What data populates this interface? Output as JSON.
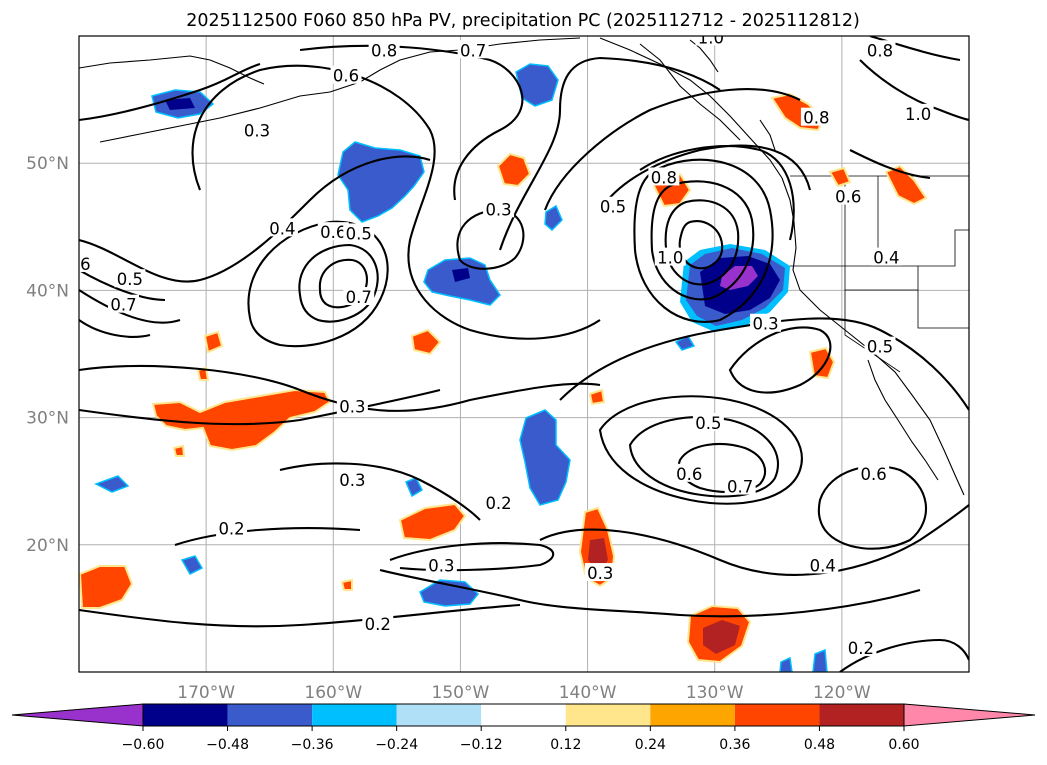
{
  "chart_data": {
    "type": "contour-map",
    "title": "2025112500 F060 850 hPa PV, precipitation PC (2025112712 - 2025112812)",
    "x_axis": {
      "unit": "longitude",
      "range": [
        -180,
        -110
      ],
      "ticks": [
        {
          "value": -170,
          "label": "170°W"
        },
        {
          "value": -160,
          "label": "160°W"
        },
        {
          "value": -150,
          "label": "150°W"
        },
        {
          "value": -140,
          "label": "140°W"
        },
        {
          "value": -130,
          "label": "130°W"
        },
        {
          "value": -120,
          "label": "120°W"
        }
      ]
    },
    "y_axis": {
      "unit": "latitude",
      "range": [
        10,
        60
      ],
      "ticks": [
        {
          "value": 20,
          "label": "20°N"
        },
        {
          "value": 30,
          "label": "30°N"
        },
        {
          "value": 40,
          "label": "40°N"
        },
        {
          "value": 50,
          "label": "50°N"
        }
      ]
    },
    "grid": true,
    "contour_labels": [
      {
        "lon": -166,
        "lat": 52.5,
        "label": "0.3"
      },
      {
        "lon": -156,
        "lat": 58.8,
        "label": "0.8"
      },
      {
        "lon": -159,
        "lat": 56.8,
        "label": "0.6"
      },
      {
        "lon": -149,
        "lat": 58.8,
        "label": "0.7"
      },
      {
        "lon": -164,
        "lat": 44.8,
        "label": "0.4"
      },
      {
        "lon": -160,
        "lat": 44.5,
        "label": "0.6"
      },
      {
        "lon": -158,
        "lat": 44.4,
        "label": "0.5"
      },
      {
        "lon": -158,
        "lat": 39.4,
        "label": "0.7"
      },
      {
        "lon": -147,
        "lat": 46.3,
        "label": "0.3"
      },
      {
        "lon": -138,
        "lat": 46.5,
        "label": "0.5"
      },
      {
        "lon": -133.5,
        "lat": 42.5,
        "label": "1.0"
      },
      {
        "lon": -134,
        "lat": 48.8,
        "label": "0.8"
      },
      {
        "lon": -130.3,
        "lat": 59.8,
        "label": "1.0"
      },
      {
        "lon": -117,
        "lat": 58.8,
        "label": "0.8"
      },
      {
        "lon": -114,
        "lat": 53.8,
        "label": "1.0"
      },
      {
        "lon": -119.5,
        "lat": 47.3,
        "label": "0.6"
      },
      {
        "lon": -122,
        "lat": 53.5,
        "label": "0.8"
      },
      {
        "lon": -116.5,
        "lat": 42.5,
        "label": "0.4"
      },
      {
        "lon": -126,
        "lat": 37.3,
        "label": "0.3"
      },
      {
        "lon": -117,
        "lat": 35.5,
        "label": "0.5"
      },
      {
        "lon": -179.5,
        "lat": 42,
        "label": "6"
      },
      {
        "lon": -176,
        "lat": 40.8,
        "label": "0.5"
      },
      {
        "lon": -176.5,
        "lat": 38.8,
        "label": "0.7"
      },
      {
        "lon": -158.5,
        "lat": 30.8,
        "label": "0.3"
      },
      {
        "lon": -130.5,
        "lat": 29.5,
        "label": "0.5"
      },
      {
        "lon": -132,
        "lat": 25.5,
        "label": "0.6"
      },
      {
        "lon": -128,
        "lat": 24.5,
        "label": "0.7"
      },
      {
        "lon": -117.5,
        "lat": 25.5,
        "label": "0.6"
      },
      {
        "lon": -158.5,
        "lat": 25,
        "label": "0.3"
      },
      {
        "lon": -147,
        "lat": 23.2,
        "label": "0.2"
      },
      {
        "lon": -168,
        "lat": 21.2,
        "label": "0.2"
      },
      {
        "lon": -151.5,
        "lat": 18.3,
        "label": "0.3"
      },
      {
        "lon": -139,
        "lat": 17.7,
        "label": "0.3"
      },
      {
        "lon": -121.5,
        "lat": 18.3,
        "label": "0.4"
      },
      {
        "lon": -156.5,
        "lat": 13.7,
        "label": "0.2"
      },
      {
        "lon": -118.5,
        "lat": 11.8,
        "label": "0.2"
      }
    ],
    "colorbar": {
      "orientation": "horizontal",
      "extend": "both",
      "boundaries": [
        -0.6,
        -0.48,
        -0.36,
        -0.24,
        -0.12,
        0.12,
        0.24,
        0.36,
        0.48,
        0.6
      ],
      "tick_labels": [
        "−0.60",
        "−0.48",
        "−0.36",
        "−0.24",
        "−0.12",
        "0.12",
        "0.24",
        "0.36",
        "0.48",
        "0.60"
      ],
      "colors": [
        "#9932cc",
        "#00008b",
        "#3a5bcc",
        "#00bfff",
        "#b0e0f8",
        "#ffffff",
        "#ffe68c",
        "#ffa500",
        "#ff4500",
        "#b22222",
        "#ff88aa"
      ]
    },
    "precipitation_blobs": [
      {
        "lon": -132,
        "lat": 39.5,
        "class": -0.6,
        "note": "strong negative core west of California"
      },
      {
        "lon": -158,
        "lat": 48,
        "class": -0.36
      },
      {
        "lon": -143,
        "lat": 27,
        "class": -0.36
      },
      {
        "lon": -150,
        "lat": 41,
        "class": -0.36
      },
      {
        "lon": -172,
        "lat": 55,
        "class": -0.48
      },
      {
        "lon": -164,
        "lat": 31,
        "class": 0.36
      },
      {
        "lon": -178,
        "lat": 16.5,
        "class": 0.36
      },
      {
        "lon": -129,
        "lat": 13,
        "class": 0.48
      },
      {
        "lon": -139,
        "lat": 19.5,
        "class": 0.48
      },
      {
        "lon": -153,
        "lat": 21.5,
        "class": 0.36
      }
    ]
  }
}
